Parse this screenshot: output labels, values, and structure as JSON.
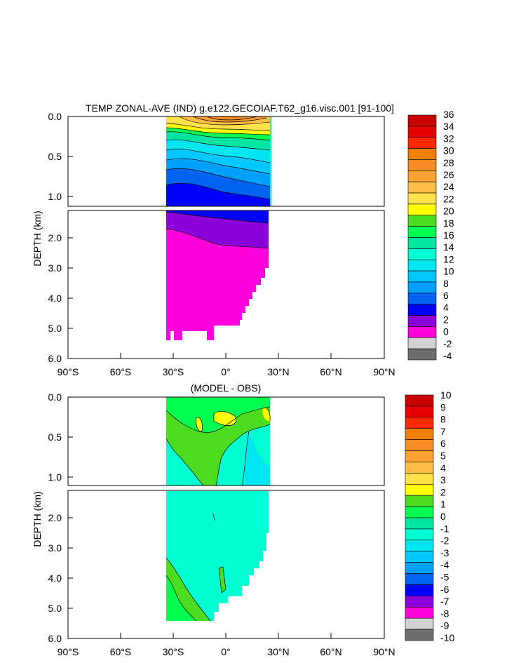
{
  "chart_data": [
    {
      "type": "heatmap",
      "title": "TEMP ZONAL-AVE (IND) g.e122.GECOIAF.T62_g16.visc.001 [91-100]",
      "ylabel": "DEPTH (km)",
      "x_ticks": [
        "90°S",
        "60°S",
        "30°S",
        "0°",
        "30°N",
        "60°N",
        "90°N"
      ],
      "x_tick_values": [
        -90,
        -60,
        -30,
        0,
        30,
        60,
        90
      ],
      "y_ticks_upper": [
        "0.0",
        "0.5",
        "1.0"
      ],
      "y_ticks_upper_values": [
        0.0,
        0.5,
        1.0
      ],
      "y_ticks_lower": [
        "2.0",
        "3.0",
        "4.0",
        "5.0",
        "6.0"
      ],
      "y_ticks_lower_values": [
        2.0,
        3.0,
        4.0,
        5.0,
        6.0
      ],
      "colorbar_labels": [
        "36",
        "34",
        "32",
        "30",
        "28",
        "26",
        "24",
        "22",
        "20",
        "18",
        "16",
        "14",
        "12",
        "10",
        "8",
        "6",
        "4",
        "2",
        "0",
        "-2",
        "-4"
      ],
      "colorbar_colors": [
        "#c80000",
        "#e60000",
        "#ff2800",
        "#f08000",
        "#f58c28",
        "#ffa032",
        "#ffbe46",
        "#ffe14b",
        "#ffff00",
        "#4bdc1e",
        "#00ff50",
        "#00e6a0",
        "#00ffd2",
        "#00e6f0",
        "#00c8ff",
        "#00a0ff",
        "#0064f0",
        "#0000ff",
        "#8c00dc",
        "#ff00dc",
        "#d2d2d2",
        "#6e6e6e"
      ],
      "approx_field": {
        "surface_max": 30,
        "thermocline": [
          {
            "lat": -33,
            "depth_km": 0.85,
            "temp": 6
          },
          {
            "lat": 0,
            "depth_km": 1.3,
            "temp": 4
          },
          {
            "lat": 25,
            "depth_km": 1.05,
            "temp": 4
          }
        ],
        "deep_value": 2
      }
    },
    {
      "type": "heatmap",
      "title": "(MODEL - OBS)",
      "ylabel": "DEPTH (km)",
      "x_ticks": [
        "90°S",
        "60°S",
        "30°S",
        "0°",
        "30°N",
        "60°N",
        "90°N"
      ],
      "x_tick_values": [
        -90,
        -60,
        -30,
        0,
        30,
        60,
        90
      ],
      "y_ticks_upper": [
        "0.0",
        "0.5",
        "1.0"
      ],
      "y_ticks_upper_values": [
        0.0,
        0.5,
        1.0
      ],
      "y_ticks_lower": [
        "2.0",
        "3.0",
        "4.0",
        "5.0",
        "6.0"
      ],
      "y_ticks_lower_values": [
        2.0,
        3.0,
        4.0,
        5.0,
        6.0
      ],
      "colorbar_labels": [
        "10",
        "9",
        "8",
        "7",
        "6",
        "5",
        "4",
        "3",
        "2",
        "1",
        "0",
        "-1",
        "-2",
        "-3",
        "-4",
        "-5",
        "-6",
        "-7",
        "-8",
        "-9",
        "-10"
      ],
      "colorbar_colors": [
        "#c80000",
        "#e60000",
        "#ff2800",
        "#f08000",
        "#f58c28",
        "#ffa032",
        "#ffbe46",
        "#ffe14b",
        "#ffff00",
        "#4bdc1e",
        "#00ff50",
        "#00e6a0",
        "#00ffd2",
        "#00e6f0",
        "#00c8ff",
        "#00a0ff",
        "#0064f0",
        "#0000ff",
        "#8c00dc",
        "#ff00dc",
        "#d2d2d2",
        "#6e6e6e"
      ],
      "approx_field": {
        "surface_range": [
          0,
          3
        ],
        "deep_value": -1
      }
    }
  ]
}
